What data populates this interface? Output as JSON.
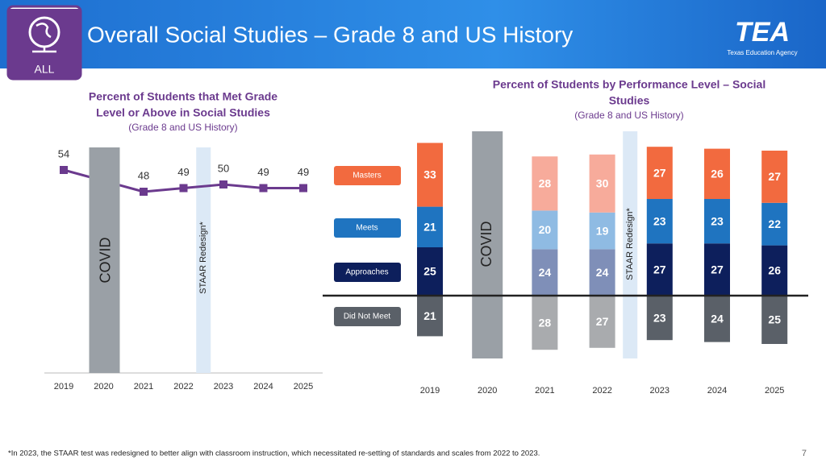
{
  "header": {
    "title": "Overall Social Studies – Grade 8 and US History",
    "badge": "ALL",
    "logo": "TEA",
    "logo_subtitle": "Texas Education Agency"
  },
  "footnote": "*In 2023, the STAAR test was redesigned to better align with classroom instruction, which necessitated re-setting of standards and scales from 2022 to 2023.",
  "page_number": "7",
  "chart_data": [
    {
      "type": "line",
      "title": [
        "Percent of Students that Met Grade",
        "Level or Above in Social Studies"
      ],
      "subtitle": "(Grade 8 and US History)",
      "categories": [
        "2019",
        "2020",
        "2021",
        "2022",
        "2023",
        "2024",
        "2025"
      ],
      "values": [
        54,
        null,
        48,
        49,
        50,
        49,
        49
      ],
      "color": "#6b3a8e",
      "annotations": [
        "COVID",
        "STAAR Redesign*"
      ]
    },
    {
      "type": "stacked_bar",
      "title": [
        "Percent of Students by Performance Level – Social",
        "Studies"
      ],
      "subtitle": "(Grade 8 and US History)",
      "categories": [
        "2019",
        "2020",
        "2021",
        "2022",
        "2023",
        "2024",
        "2025"
      ],
      "annotations": [
        "COVID",
        "STAAR Redesign*"
      ],
      "series": [
        {
          "name": "Masters",
          "color": "#f26a3f",
          "colors": [
            "#f26a3f",
            null,
            "#f7ab9b",
            "#f7ab9b",
            "#f26a3f",
            "#f26a3f",
            "#f26a3f"
          ],
          "values": [
            33,
            null,
            28,
            30,
            27,
            26,
            27
          ]
        },
        {
          "name": "Meets",
          "color": "#1f74c0",
          "colors": [
            "#1f74c0",
            null,
            "#8fbbe3",
            "#8fbbe3",
            "#1f74c0",
            "#1f74c0",
            "#1f74c0"
          ],
          "values": [
            21,
            null,
            20,
            19,
            23,
            23,
            22
          ]
        },
        {
          "name": "Approaches",
          "color": "#0d1f5c",
          "colors": [
            "#0d1f5c",
            null,
            "#7f8fb8",
            "#7f8fb8",
            "#0d1f5c",
            "#0d1f5c",
            "#0d1f5c"
          ],
          "values": [
            25,
            null,
            24,
            24,
            27,
            27,
            26
          ]
        },
        {
          "name": "Did Not Meet",
          "color": "#5a6068",
          "colors": [
            "#5a6068",
            null,
            "#a9abae",
            "#a9abae",
            "#5a6068",
            "#5a6068",
            "#5a6068"
          ],
          "values": [
            21,
            null,
            28,
            27,
            23,
            24,
            25
          ],
          "below_axis": true
        }
      ]
    }
  ]
}
